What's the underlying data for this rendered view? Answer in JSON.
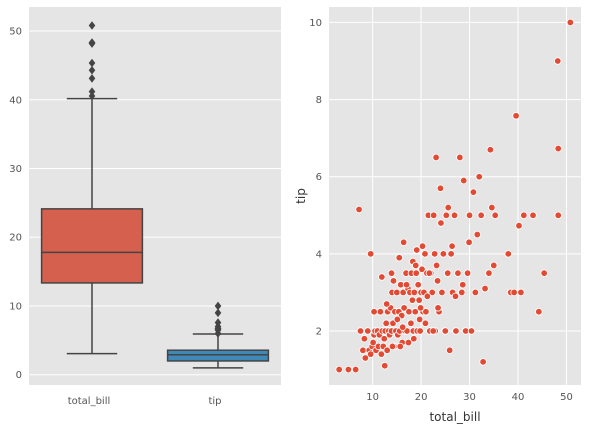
{
  "chart_data": [
    {
      "type": "box",
      "categories": [
        "total_bill",
        "tip"
      ],
      "boxes": [
        {
          "name": "total_bill",
          "color": "#d4604d",
          "whisker_low": 3.07,
          "q1": 13.35,
          "median": 17.8,
          "q3": 24.13,
          "whisker_high": 40.17,
          "outliers": [
            40.55,
            41.19,
            43.11,
            44.3,
            45.35,
            48.17,
            48.27,
            48.33,
            50.81
          ]
        },
        {
          "name": "tip",
          "color": "#3f89b8",
          "whisker_low": 1.0,
          "q1": 2.0,
          "median": 2.9,
          "q3": 3.56,
          "whisker_high": 5.92,
          "outliers": [
            6.0,
            6.5,
            6.5,
            6.7,
            6.73,
            7.0,
            7.58,
            9.0,
            10.0
          ]
        }
      ],
      "ylim": [
        -1.5,
        53.5
      ],
      "yticks": [
        0,
        10,
        20,
        30,
        40,
        50
      ],
      "grid": true
    },
    {
      "type": "scatter",
      "xlabel": "total_bill",
      "ylabel": "tip",
      "color": "#e24a33",
      "xlim": [
        1,
        53
      ],
      "ylim": [
        0.6,
        10.4
      ],
      "xticks": [
        10,
        20,
        30,
        40,
        50
      ],
      "yticks": [
        2,
        4,
        6,
        8,
        10
      ],
      "grid": true,
      "points": [
        [
          3.1,
          1.0
        ],
        [
          5.0,
          1.0
        ],
        [
          6.5,
          1.0
        ],
        [
          7.2,
          5.15
        ],
        [
          7.5,
          2.0
        ],
        [
          8.0,
          1.5
        ],
        [
          8.3,
          1.8
        ],
        [
          8.5,
          1.3
        ],
        [
          9.0,
          2.0
        ],
        [
          9.3,
          1.5
        ],
        [
          9.6,
          1.4
        ],
        [
          9.9,
          1.6
        ],
        [
          10.1,
          1.7
        ],
        [
          10.3,
          1.9
        ],
        [
          10.5,
          2.0
        ],
        [
          10.7,
          1.5
        ],
        [
          11.0,
          2.0
        ],
        [
          11.2,
          1.6
        ],
        [
          11.4,
          1.9
        ],
        [
          11.6,
          2.5
        ],
        [
          11.8,
          1.4
        ],
        [
          12.0,
          2.0
        ],
        [
          12.2,
          1.6
        ],
        [
          12.4,
          1.8
        ],
        [
          12.6,
          2.0
        ],
        [
          12.8,
          2.2
        ],
        [
          13.0,
          1.5
        ],
        [
          13.1,
          2.5
        ],
        [
          13.3,
          2.0
        ],
        [
          13.5,
          1.9
        ],
        [
          13.7,
          2.6
        ],
        [
          13.9,
          2.0
        ],
        [
          14.0,
          3.0
        ],
        [
          14.2,
          2.2
        ],
        [
          14.4,
          1.6
        ],
        [
          14.6,
          2.5
        ],
        [
          14.8,
          2.0
        ],
        [
          15.0,
          3.0
        ],
        [
          15.2,
          1.9
        ],
        [
          15.4,
          2.5
        ],
        [
          15.6,
          2.0
        ],
        [
          15.8,
          3.2
        ],
        [
          16.0,
          2.4
        ],
        [
          16.1,
          1.7
        ],
        [
          16.3,
          3.0
        ],
        [
          16.5,
          2.6
        ],
        [
          16.7,
          2.0
        ],
        [
          16.9,
          3.5
        ],
        [
          17.1,
          2.0
        ],
        [
          17.3,
          3.1
        ],
        [
          17.5,
          2.5
        ],
        [
          17.7,
          3.0
        ],
        [
          17.9,
          2.2
        ],
        [
          18.0,
          3.5
        ],
        [
          18.2,
          2.8
        ],
        [
          18.4,
          2.0
        ],
        [
          18.6,
          3.0
        ],
        [
          18.8,
          2.5
        ],
        [
          19.0,
          3.5
        ],
        [
          19.2,
          2.0
        ],
        [
          19.4,
          3.2
        ],
        [
          19.6,
          2.8
        ],
        [
          19.8,
          2.0
        ],
        [
          20.0,
          3.0
        ],
        [
          20.2,
          3.6
        ],
        [
          20.4,
          2.5
        ],
        [
          20.6,
          3.0
        ],
        [
          20.8,
          4.0
        ],
        [
          21.0,
          2.5
        ],
        [
          21.2,
          3.5
        ],
        [
          21.5,
          5.0
        ],
        [
          21.8,
          2.0
        ],
        [
          22.0,
          3.5
        ],
        [
          22.3,
          3.0
        ],
        [
          22.6,
          5.0
        ],
        [
          22.9,
          2.0
        ],
        [
          23.1,
          6.5
        ],
        [
          23.4,
          3.3
        ],
        [
          23.7,
          2.5
        ],
        [
          24.0,
          5.7
        ],
        [
          24.3,
          3.0
        ],
        [
          24.6,
          4.0
        ],
        [
          24.9,
          2.0
        ],
        [
          25.2,
          5.0
        ],
        [
          25.5,
          3.5
        ],
        [
          25.9,
          1.5
        ],
        [
          26.2,
          4.0
        ],
        [
          26.5,
          3.0
        ],
        [
          26.9,
          5.0
        ],
        [
          27.2,
          2.0
        ],
        [
          27.6,
          3.5
        ],
        [
          28.0,
          6.5
        ],
        [
          28.4,
          3.0
        ],
        [
          28.8,
          5.9
        ],
        [
          29.2,
          2.0
        ],
        [
          29.6,
          3.5
        ],
        [
          30.0,
          5.0
        ],
        [
          30.4,
          2.0
        ],
        [
          30.8,
          5.6
        ],
        [
          31.2,
          3.0
        ],
        [
          31.6,
          4.5
        ],
        [
          32.0,
          6.0
        ],
        [
          32.4,
          5.0
        ],
        [
          32.8,
          1.2
        ],
        [
          33.2,
          3.1
        ],
        [
          34.0,
          3.5
        ],
        [
          34.3,
          6.7
        ],
        [
          34.6,
          5.2
        ],
        [
          35.0,
          3.7
        ],
        [
          35.3,
          5.0
        ],
        [
          38.0,
          4.0
        ],
        [
          38.5,
          3.0
        ],
        [
          39.2,
          3.0
        ],
        [
          39.6,
          7.58
        ],
        [
          40.2,
          4.73
        ],
        [
          40.6,
          3.0
        ],
        [
          41.2,
          5.0
        ],
        [
          43.1,
          5.0
        ],
        [
          44.3,
          2.5
        ],
        [
          45.4,
          3.5
        ],
        [
          48.2,
          9.0
        ],
        [
          48.3,
          6.73
        ],
        [
          48.3,
          5.0
        ],
        [
          50.8,
          10.0
        ],
        [
          16.4,
          4.3
        ],
        [
          18.3,
          3.8
        ],
        [
          19.1,
          4.1
        ],
        [
          20.3,
          4.2
        ],
        [
          21.7,
          3.5
        ],
        [
          22.8,
          4.0
        ],
        [
          24.1,
          4.8
        ],
        [
          25.6,
          5.2
        ],
        [
          26.4,
          4.2
        ],
        [
          27.1,
          2.9
        ],
        [
          28.6,
          3.2
        ],
        [
          29.9,
          4.3
        ],
        [
          11.9,
          3.4
        ],
        [
          13.9,
          3.5
        ],
        [
          15.5,
          3.9
        ],
        [
          17.0,
          3.2
        ],
        [
          18.9,
          3.7
        ],
        [
          19.9,
          2.6
        ],
        [
          20.9,
          2.2
        ],
        [
          23.2,
          3.7
        ],
        [
          12.9,
          2.7
        ],
        [
          14.3,
          3.3
        ],
        [
          15.1,
          2.3
        ],
        [
          16.2,
          2.1
        ],
        [
          17.4,
          1.7
        ],
        [
          18.5,
          1.8
        ],
        [
          19.7,
          2.3
        ],
        [
          21.3,
          2.9
        ],
        [
          9.6,
          4.0
        ],
        [
          10.3,
          2.5
        ],
        [
          12.5,
          1.1
        ],
        [
          14.1,
          1.6
        ],
        [
          15.7,
          1.6
        ],
        [
          22.5,
          2.0
        ],
        [
          23.5,
          2.6
        ],
        [
          25.0,
          2.0
        ]
      ]
    }
  ]
}
